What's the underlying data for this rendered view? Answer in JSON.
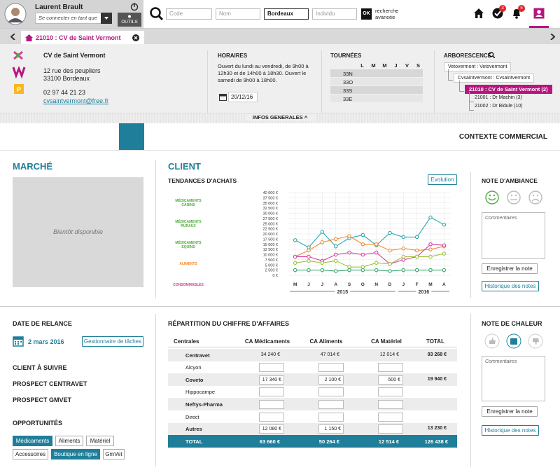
{
  "header": {
    "user_name": "Laurent Brault",
    "login_as_placeholder": "Se connecter en tant que",
    "tools_button": "OUTILS",
    "search": {
      "code_placeholder": "Code",
      "name_placeholder": "Nom",
      "city_value": "Bordeaux",
      "individual_placeholder": "Individu",
      "ok_button": "OK",
      "advanced_search": "recherche avancée"
    },
    "tasks_badge": 3,
    "notifications_badge": 5
  },
  "tab": {
    "label": "21010 : CV de Saint Vermont"
  },
  "info": {
    "contact": {
      "name": "CV de Saint Vermont",
      "street": "12 rue des peupliers",
      "city": "33100 Bordeaux",
      "phone": "02 97 44 21 23",
      "email": "cvsaintvermont@free.fr"
    },
    "hours": {
      "title": "HORAIRES",
      "text": "Ouvert du lundi au vendredi, de 9h00 à 12h30 et de 14h00 à 18h30. Ouvert le samedi de 9h00 à 18h00.",
      "date": "20/12/16"
    },
    "rounds": {
      "title": "TOURNÉES",
      "days": [
        "L",
        "M",
        "M",
        "J",
        "V",
        "S"
      ],
      "rows": [
        {
          "code": "33N",
          "deliveries": [
            false,
            true,
            false,
            true,
            false,
            false
          ]
        },
        {
          "code": "33O",
          "deliveries": [
            false,
            true,
            false,
            true,
            false,
            false
          ]
        },
        {
          "code": "33S",
          "deliveries": [
            true,
            false,
            true,
            false,
            false,
            true
          ]
        },
        {
          "code": "33E",
          "deliveries": [
            false,
            true,
            false,
            false,
            false,
            false
          ]
        }
      ]
    },
    "tree": {
      "title": "ARBORESCENCE",
      "nodes": [
        {
          "label": "Vetovermont : Vetovermont",
          "level": 0
        },
        {
          "label": "Cvsaintvermont : Cvsaintvermont",
          "level": 1
        },
        {
          "label": "21010 : CV de Saint Vermont (2)",
          "level": 2,
          "current": true
        },
        {
          "label": "21001 : Dr Machin (3)",
          "level": 3,
          "mail": true
        },
        {
          "label": "21002 : Dr Bidule (10)",
          "level": 3
        }
      ]
    },
    "toggle": "INFOS GENERALES"
  },
  "toolbar": {
    "title": "CONTEXTE COMMERCIAL"
  },
  "market": {
    "title": "MARCHÉ",
    "placeholder": "Bientôt disponible"
  },
  "client": {
    "title": "CLIENT",
    "trends": {
      "title": "TENDANCES D'ACHATS",
      "button": "Evolution",
      "products": [
        {
          "label": "MÉDICAMENTS CANINS",
          "color": "#4fae3c",
          "trend_color": "#f08a2a"
        },
        {
          "label": "MÉDICAMENTS RURAUX",
          "color": "#4fae3c",
          "trend_color": "#e03030"
        },
        {
          "label": "MÉDICAMENTS ÉQUINS",
          "color": "#4fae3c",
          "trend_color": "#4fae3c"
        },
        {
          "label": "ALIMENTS",
          "color": "#f08a2a",
          "trend_color": "#4fae3c"
        },
        {
          "label": "CONSOMMABLES",
          "color": "#d63ea0",
          "trend_color": "#4fae3c"
        }
      ],
      "chart": {
        "type": "line",
        "categories": [
          "M",
          "J",
          "J",
          "A",
          "S",
          "O",
          "N",
          "D",
          "J",
          "F",
          "M",
          "A"
        ],
        "years": [
          {
            "label": "2015",
            "months": 8
          },
          {
            "label": "2016",
            "months": 4
          }
        ],
        "ylim": [
          0,
          40000
        ],
        "yticks": [
          {
            "value": 0,
            "label": "0 €"
          },
          {
            "value": 2500,
            "label": "2 500 €"
          },
          {
            "value": 5000,
            "label": "5 000 €"
          },
          {
            "value": 7500,
            "label": "7 500 €"
          },
          {
            "value": 10000,
            "label": "10 000 €"
          },
          {
            "value": 12500,
            "label": "12 500 €"
          },
          {
            "value": 15000,
            "label": "15 000 €"
          },
          {
            "value": 17500,
            "label": "17 500 €"
          },
          {
            "value": 20000,
            "label": "20 000 €"
          },
          {
            "value": 22500,
            "label": "22 500 €"
          },
          {
            "value": 25000,
            "label": "25 000 €"
          },
          {
            "value": 27500,
            "label": "27 500 €"
          },
          {
            "value": 30000,
            "label": "30 000 €"
          },
          {
            "value": 32500,
            "label": "32 500 €"
          },
          {
            "value": 35000,
            "label": "35 000 €"
          },
          {
            "value": 37500,
            "label": "37 500 €"
          },
          {
            "value": 40000,
            "label": "40 000 €"
          }
        ],
        "grid": true,
        "series": [
          {
            "color": "#2aa9ae",
            "values": [
              17000,
              13500,
              21000,
              14000,
              18000,
              19500,
              14500,
              20500,
              18500,
              18500,
              28000,
              24500
            ]
          },
          {
            "color": "#f28b30",
            "values": [
              9000,
              12000,
              16000,
              17500,
              19000,
              15000,
              15000,
              12000,
              13000,
              12000,
              12500,
              14000
            ]
          },
          {
            "color": "#d63ea0",
            "values": [
              9000,
              9000,
              7000,
              10000,
              11000,
              10000,
              11000,
              5500,
              7500,
              9000,
              15000,
              14500
            ]
          },
          {
            "color": "#9fc33a",
            "values": [
              6000,
              7000,
              6000,
              7000,
              4000,
              4000,
              6000,
              5500,
              9000,
              9000,
              9000,
              10500
            ]
          },
          {
            "color": "#3aaa72",
            "values": [
              2500,
              2500,
              2500,
              2000,
              2500,
              2500,
              2500,
              2000,
              2500,
              2500,
              2500,
              2500
            ]
          }
        ]
      }
    }
  },
  "mood_note": {
    "title": "NOTE D'AMBIANCE",
    "comment_placeholder": "Commentaires",
    "save_button": "Enregistrer la note",
    "history_button": "Historique des notes"
  },
  "follow_up": {
    "title": "DATE DE RELANCE",
    "date": "2 mars 2016",
    "tasks_button": "Gestionnaire de tâches",
    "flags": [
      {
        "label": "CLIENT À SUIVRE",
        "active": true
      },
      {
        "label": "PROSPECT CENTRAVET",
        "active": false
      },
      {
        "label": "PROSPECT GMVET",
        "active": true
      }
    ],
    "opportunities": {
      "title": "OPPORTUNITÉS",
      "tags": [
        [
          {
            "label": "Médicaments",
            "active": true
          },
          {
            "label": "Aliments",
            "active": false
          },
          {
            "label": "Matériel",
            "active": false
          }
        ],
        [
          {
            "label": "Accessoires",
            "active": false
          },
          {
            "label": "Boutique en ligne",
            "active": true
          },
          {
            "label": "GmVet",
            "active": false
          }
        ]
      ]
    }
  },
  "revenue": {
    "title": "RÉPARTITION DU CHIFFRE D'AFFAIRES",
    "columns": [
      "Centrales",
      "CA Médicaments",
      "CA Aliments",
      "CA Matériel",
      "TOTAL"
    ],
    "rows": [
      {
        "name": "Centravet",
        "bold": true,
        "cells": [
          {
            "value": "34 240 €"
          },
          {
            "value": "47 014 €"
          },
          {
            "value": "12 014 €"
          }
        ],
        "total": "93 268 €"
      },
      {
        "name": "Alcyon",
        "bold": false,
        "cells": [
          {
            "checked": false,
            "input": true
          },
          {
            "checked": false,
            "input": true
          },
          {
            "checked": false,
            "input": true
          }
        ]
      },
      {
        "name": "Coveto",
        "bold": true,
        "cells": [
          {
            "checked": true,
            "input": true,
            "value": "17 340 €"
          },
          {
            "checked": true,
            "input": true,
            "value": "2 100 €"
          },
          {
            "checked": true,
            "input": true,
            "value": "500 €"
          }
        ],
        "total": "19 940 €"
      },
      {
        "name": "Hippocampe",
        "bold": false,
        "cells": [
          {
            "checked": false,
            "input": true
          },
          {
            "checked": false,
            "input": true
          },
          {
            "checked": false,
            "input": true
          }
        ]
      },
      {
        "name": "Neftys-Pharma",
        "bold": true,
        "cells": [
          {
            "checked": false,
            "input": true
          },
          {
            "checked": false,
            "input": true
          },
          {
            "checked": true,
            "input": true
          }
        ]
      },
      {
        "name": "Direct",
        "bold": false,
        "cells": [
          {
            "input": true
          },
          {
            "input": true
          },
          {
            "input": true
          }
        ]
      },
      {
        "name": "Autres",
        "bold": true,
        "cells": [
          {
            "checked": true,
            "input": true,
            "value": "12 080 €"
          },
          {
            "checked": true,
            "input": true,
            "value": "1 150 €"
          },
          {
            "checked": false,
            "input": true
          }
        ],
        "total": "13 230 €"
      }
    ],
    "total": {
      "label": "TOTAL",
      "values": [
        "63 660 €",
        "50 264 €",
        "12 514 €"
      ],
      "total": "126 438 €"
    }
  },
  "heat_note": {
    "title": "NOTE DE CHALEUR",
    "comment_placeholder": "Commentaires",
    "save_button": "Enregistrer la note",
    "history_button": "Historique des notes"
  }
}
